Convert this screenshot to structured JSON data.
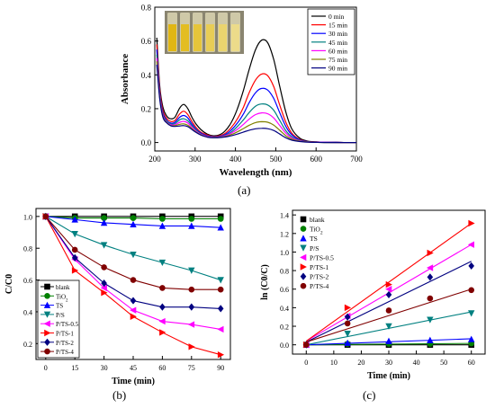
{
  "captions": {
    "a": "(a)",
    "b": "(b)",
    "c": "(c)"
  },
  "chart_data": [
    {
      "id": "a",
      "type": "line",
      "xlabel": "Wavelength (nm)",
      "ylabel": "Absorbance",
      "xlim": [
        200,
        700
      ],
      "ylim": [
        -0.05,
        0.8
      ],
      "xticks": [
        200,
        300,
        400,
        500,
        600,
        700
      ],
      "yticks": [
        0.0,
        0.2,
        0.4,
        0.6,
        0.8
      ],
      "legend_position": "top-right",
      "inset": "photo of sample vials",
      "x": [
        205,
        212,
        220,
        230,
        240,
        250,
        262,
        272,
        282,
        292,
        302,
        315,
        330,
        345,
        360,
        375,
        390,
        405,
        420,
        435,
        450,
        465,
        480,
        495,
        510,
        525,
        540,
        560,
        580,
        600,
        620,
        650,
        680,
        700
      ],
      "series": [
        {
          "name": "0 min",
          "color": "#000000",
          "values": [
            0.62,
            0.34,
            0.21,
            0.155,
            0.14,
            0.15,
            0.205,
            0.225,
            0.2,
            0.15,
            0.11,
            0.075,
            0.05,
            0.04,
            0.045,
            0.07,
            0.12,
            0.2,
            0.31,
            0.44,
            0.55,
            0.605,
            0.59,
            0.49,
            0.33,
            0.18,
            0.08,
            0.025,
            0.008,
            0.004,
            0.002,
            0.001,
            0.0,
            0.0
          ]
        },
        {
          "name": "15 min",
          "color": "#ff0000",
          "values": [
            0.58,
            0.32,
            0.19,
            0.14,
            0.125,
            0.13,
            0.17,
            0.185,
            0.165,
            0.125,
            0.09,
            0.06,
            0.045,
            0.036,
            0.04,
            0.055,
            0.09,
            0.14,
            0.21,
            0.3,
            0.37,
            0.405,
            0.395,
            0.33,
            0.22,
            0.12,
            0.055,
            0.018,
            0.006,
            0.003,
            0.002,
            0.001,
            0.0,
            0.0
          ]
        },
        {
          "name": "30 min",
          "color": "#0000ff",
          "values": [
            0.55,
            0.3,
            0.175,
            0.13,
            0.115,
            0.12,
            0.15,
            0.16,
            0.145,
            0.11,
            0.08,
            0.055,
            0.04,
            0.034,
            0.036,
            0.048,
            0.075,
            0.115,
            0.17,
            0.24,
            0.295,
            0.32,
            0.31,
            0.26,
            0.175,
            0.095,
            0.045,
            0.015,
            0.005,
            0.003,
            0.002,
            0.001,
            0.0,
            0.0
          ]
        },
        {
          "name": "45 min",
          "color": "#008080",
          "values": [
            0.52,
            0.29,
            0.165,
            0.125,
            0.11,
            0.112,
            0.135,
            0.14,
            0.128,
            0.1,
            0.075,
            0.05,
            0.037,
            0.032,
            0.034,
            0.043,
            0.063,
            0.095,
            0.135,
            0.18,
            0.215,
            0.228,
            0.222,
            0.19,
            0.13,
            0.07,
            0.034,
            0.012,
            0.004,
            0.002,
            0.001,
            0.0,
            0.0,
            0.0
          ]
        },
        {
          "name": "60 min",
          "color": "#ff00ff",
          "values": [
            0.5,
            0.28,
            0.16,
            0.12,
            0.105,
            0.105,
            0.12,
            0.125,
            0.115,
            0.09,
            0.068,
            0.048,
            0.035,
            0.03,
            0.032,
            0.04,
            0.055,
            0.078,
            0.108,
            0.14,
            0.165,
            0.175,
            0.17,
            0.145,
            0.1,
            0.055,
            0.027,
            0.01,
            0.003,
            0.002,
            0.001,
            0.0,
            0.0,
            0.0
          ]
        },
        {
          "name": "75 min",
          "color": "#808000",
          "values": [
            0.48,
            0.27,
            0.155,
            0.118,
            0.1,
            0.1,
            0.108,
            0.11,
            0.102,
            0.082,
            0.063,
            0.045,
            0.033,
            0.029,
            0.03,
            0.036,
            0.047,
            0.063,
            0.083,
            0.103,
            0.118,
            0.123,
            0.12,
            0.103,
            0.072,
            0.04,
            0.02,
            0.008,
            0.003,
            0.001,
            0.0,
            0.0,
            0.0,
            0.0
          ]
        },
        {
          "name": "90 min",
          "color": "#000080",
          "values": [
            0.46,
            0.26,
            0.15,
            0.115,
            0.098,
            0.095,
            0.098,
            0.1,
            0.094,
            0.077,
            0.06,
            0.043,
            0.032,
            0.028,
            0.029,
            0.033,
            0.04,
            0.05,
            0.062,
            0.073,
            0.081,
            0.084,
            0.082,
            0.071,
            0.05,
            0.028,
            0.014,
            0.006,
            0.002,
            0.001,
            0.0,
            0.0,
            0.0,
            0.0
          ]
        }
      ]
    },
    {
      "id": "b",
      "type": "line",
      "xlabel": "Time (min)",
      "ylabel": "C/C0",
      "xlim": [
        -5,
        95
      ],
      "ylim": [
        0.1,
        1.05
      ],
      "xticks": [
        0,
        15,
        30,
        45,
        60,
        75,
        90
      ],
      "yticks": [
        0.2,
        0.4,
        0.6,
        0.8,
        1.0
      ],
      "legend_position": "bottom-left",
      "x": [
        0,
        15,
        30,
        45,
        60,
        75,
        90
      ],
      "series": [
        {
          "name": "blank",
          "color": "#000000",
          "marker": "square",
          "values": [
            1.0,
            1.0,
            1.0,
            1.0,
            1.0,
            1.0,
            1.0
          ]
        },
        {
          "name": "TiO2",
          "color": "#008000",
          "marker": "circle",
          "values": [
            1.0,
            0.99,
            0.99,
            0.99,
            0.985,
            0.985,
            0.985
          ]
        },
        {
          "name": "TS",
          "color": "#0000ff",
          "marker": "triangle",
          "values": [
            1.0,
            0.98,
            0.96,
            0.95,
            0.94,
            0.94,
            0.93
          ]
        },
        {
          "name": "P/S",
          "color": "#008080",
          "marker": "tri-down",
          "values": [
            1.0,
            0.89,
            0.82,
            0.76,
            0.71,
            0.66,
            0.6
          ]
        },
        {
          "name": "P/TS-0.5",
          "color": "#ff00ff",
          "marker": "tri-left",
          "values": [
            1.0,
            0.73,
            0.55,
            0.41,
            0.34,
            0.32,
            0.29
          ]
        },
        {
          "name": "P/TS-1",
          "color": "#ff0000",
          "marker": "tri-right",
          "values": [
            1.0,
            0.66,
            0.52,
            0.37,
            0.27,
            0.18,
            0.13
          ]
        },
        {
          "name": "P/TS-2",
          "color": "#000080",
          "marker": "diamond",
          "values": [
            1.0,
            0.74,
            0.58,
            0.47,
            0.43,
            0.43,
            0.42
          ]
        },
        {
          "name": "P/TS-4",
          "color": "#800000",
          "marker": "circle",
          "values": [
            1.0,
            0.79,
            0.68,
            0.6,
            0.55,
            0.54,
            0.54
          ]
        }
      ]
    },
    {
      "id": "c",
      "type": "scatter",
      "xlabel": "Time (min)",
      "ylabel": "ln (C0/C)",
      "xlim": [
        -5,
        65
      ],
      "ylim": [
        -0.1,
        1.45
      ],
      "xticks": [
        0,
        10,
        20,
        30,
        40,
        50,
        60
      ],
      "yticks": [
        0.0,
        0.2,
        0.4,
        0.6,
        0.8,
        1.0,
        1.2,
        1.4
      ],
      "legend_position": "top-left",
      "x": [
        0,
        15,
        30,
        45,
        60
      ],
      "series": [
        {
          "name": "blank",
          "color": "#000000",
          "marker": "square",
          "values": [
            0,
            0,
            0,
            0,
            0
          ],
          "fit": [
            0,
            0
          ]
        },
        {
          "name": "TiO2",
          "color": "#008000",
          "marker": "circle",
          "values": [
            0,
            0.01,
            0.01,
            0.01,
            0.015
          ],
          "fit": [
            0,
            0.015
          ]
        },
        {
          "name": "TS",
          "color": "#0000ff",
          "marker": "triangle",
          "values": [
            0,
            0.02,
            0.04,
            0.05,
            0.06
          ],
          "fit": [
            0,
            0.065
          ]
        },
        {
          "name": "P/S",
          "color": "#008080",
          "marker": "tri-down",
          "values": [
            0,
            0.12,
            0.2,
            0.27,
            0.34
          ],
          "fit": [
            0,
            0.355
          ]
        },
        {
          "name": "P/TS-0.5",
          "color": "#ff00ff",
          "marker": "tri-left",
          "values": [
            0,
            0.31,
            0.6,
            0.83,
            1.08
          ],
          "fit": [
            0.04,
            1.08
          ]
        },
        {
          "name": "P/TS-1",
          "color": "#ff0000",
          "marker": "tri-right",
          "values": [
            0,
            0.4,
            0.65,
            0.99,
            1.31
          ],
          "fit": [
            0.04,
            1.31
          ]
        },
        {
          "name": "P/TS-2",
          "color": "#000080",
          "marker": "diamond",
          "values": [
            0,
            0.3,
            0.54,
            0.73,
            0.85
          ],
          "fit": [
            0.03,
            0.9
          ]
        },
        {
          "name": "P/TS-4",
          "color": "#800000",
          "marker": "circle",
          "values": [
            0,
            0.23,
            0.37,
            0.5,
            0.59
          ],
          "fit": [
            0.03,
            0.6
          ]
        }
      ]
    }
  ]
}
